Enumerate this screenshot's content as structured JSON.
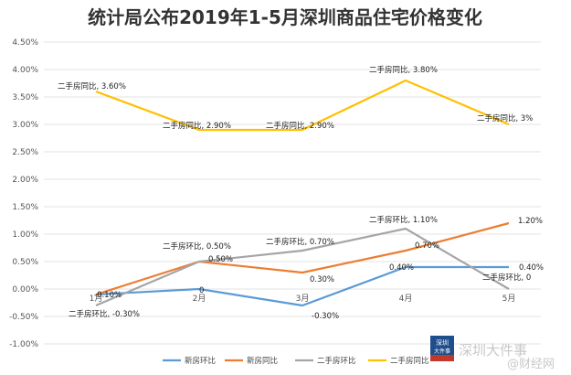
{
  "chart_data": {
    "type": "line",
    "title": "统计局公布2019年1-5月深圳商品住宅价格变化",
    "categories": [
      "1月",
      "2月",
      "3月",
      "4月",
      "5月"
    ],
    "y_ticks": [
      "4.50%",
      "4.00%",
      "3.50%",
      "3.00%",
      "2.50%",
      "2.00%",
      "1.50%",
      "1.00%",
      "0.50%",
      "0.00%",
      "-0.50%",
      "-1.00%"
    ],
    "ylim": [
      -1.0,
      4.5
    ],
    "grid": true,
    "legend_position": "bottom",
    "series": [
      {
        "name": "新房环比",
        "color": "#5b9bd5",
        "values": [
          -0.1,
          0.0,
          -0.3,
          0.4,
          0.4
        ],
        "labels": [
          "-0.10%",
          "0",
          "-0.30%",
          "0.40%",
          "0.40%"
        ]
      },
      {
        "name": "新房同比",
        "color": "#ed7d31",
        "values": [
          -0.1,
          0.5,
          0.3,
          0.7,
          1.2
        ],
        "labels": [
          "",
          "0.50%",
          "0.30%",
          "0.70%",
          "1.20%"
        ]
      },
      {
        "name": "二手房环比",
        "color": "#a5a5a5",
        "values": [
          -0.3,
          0.5,
          0.7,
          1.1,
          0.0
        ],
        "labels": [
          "二手房环比, -0.30%",
          "二手房环比, 0.50%",
          "二手房环比, 0.70%",
          "二手房环比, 1.10%",
          "二手房环比, 0"
        ]
      },
      {
        "name": "二手房同比",
        "color": "#ffc000",
        "values": [
          3.6,
          2.9,
          2.9,
          3.8,
          3.0
        ],
        "labels": [
          "二手房同比, 3.60%",
          "二手房同比, 2.90%",
          "二手房同比, 2.90%",
          "二手房同比, 3.80%",
          "二手房同比, 3%"
        ]
      }
    ]
  },
  "watermark": {
    "logo_lines": [
      "深圳",
      "大件事"
    ],
    "text": "深圳大件事",
    "sub": "@财经网"
  }
}
